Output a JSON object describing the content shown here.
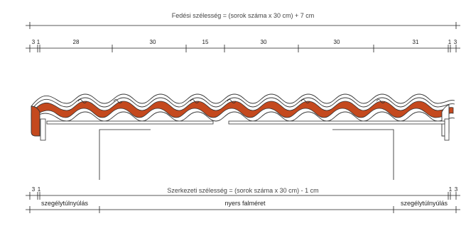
{
  "top_dimension": {
    "title": "Fedési szélesség = (sorok száma x 30 cm) + 7 cm",
    "segments": [
      "3",
      "1",
      "28",
      "30",
      "15",
      "30",
      "30",
      "31",
      "1",
      "3"
    ]
  },
  "bottom_dimension": {
    "title": "Szerkezeti szélesség = (sorok száma x 30 cm) - 1 cm",
    "left_labels": [
      "3",
      "1"
    ],
    "right_labels": [
      "1",
      "3"
    ]
  },
  "captions": {
    "left": "szegélytúlnyúlás",
    "center": "nyers falméret",
    "right": "szegélytúlnyúlás"
  },
  "colors": {
    "line": "#222222",
    "tile_outline": "#333333",
    "tile_fill": "#c4491e",
    "text": "#444444"
  }
}
